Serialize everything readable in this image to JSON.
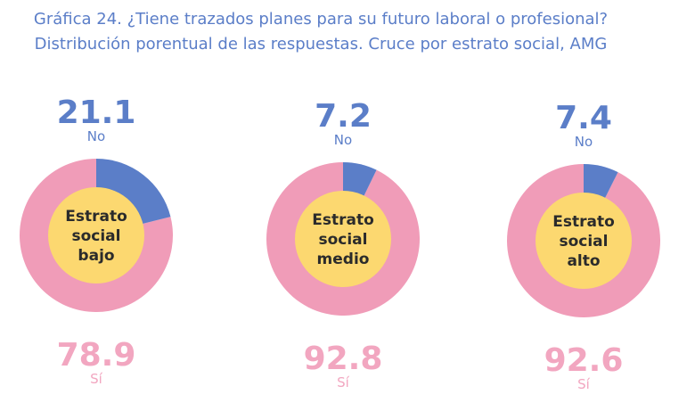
{
  "title": "Gráfica 24. ¿Tiene trazados planes para su  futuro laboral o profesional?",
  "subtitle": "Distribución porentual de las respuestas. Cruce por estrato social, AMG",
  "colors": {
    "no": "#5b7ec8",
    "si": "#f09cb8",
    "si_text": "#f2a6c0",
    "center": "#fcd870",
    "center_text": "#2b2b2b"
  },
  "chart_data": {
    "type": "pie",
    "charts": [
      {
        "center_label": [
          "Estrato",
          "social",
          "bajo"
        ],
        "slices": [
          {
            "label": "No",
            "value": 21.1
          },
          {
            "label": "Sí",
            "value": 78.9
          }
        ]
      },
      {
        "center_label": [
          "Estrato",
          "social",
          "medio"
        ],
        "slices": [
          {
            "label": "No",
            "value": 7.2
          },
          {
            "label": "Sí",
            "value": 92.8
          }
        ]
      },
      {
        "center_label": [
          "Estrato",
          "social",
          "alto"
        ],
        "slices": [
          {
            "label": "No",
            "value": 7.4
          },
          {
            "label": "Sí",
            "value": 92.6
          }
        ]
      }
    ]
  }
}
